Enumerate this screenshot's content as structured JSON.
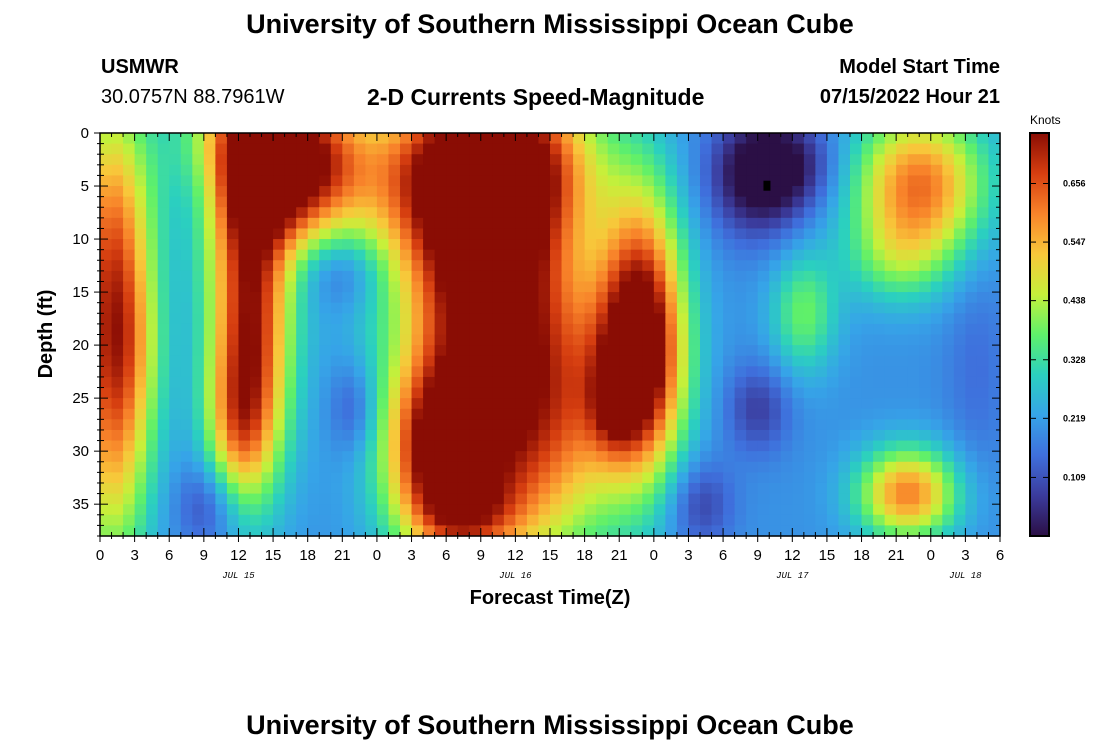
{
  "header": {
    "title": "University of Southern Mississippi Ocean Cube",
    "station": "USMWR",
    "coords": "30.0757N  88.7961W",
    "subtitle": "2-D Currents Speed-Magnitude",
    "model_start_label": "Model Start Time",
    "model_start_value": "07/15/2022 Hour 21",
    "footer_title": "University of Southern Mississippi Ocean Cube"
  },
  "colors": {
    "scale": [
      "#2b0f45",
      "#3b3b9c",
      "#3f6fdc",
      "#36a4e8",
      "#2bd0bf",
      "#5ff06a",
      "#c6f03a",
      "#f8c73a",
      "#f8832a",
      "#d63e10",
      "#8a0d04"
    ]
  },
  "chart_data": {
    "type": "heatmap",
    "xlabel": "Forecast Time(Z)",
    "ylabel": "Depth (ft)",
    "x_tick_labels": [
      "0",
      "3",
      "6",
      "9",
      "12",
      "15",
      "18",
      "21",
      "0",
      "3",
      "6",
      "9",
      "12",
      "15",
      "18",
      "21",
      "0",
      "3",
      "6",
      "9",
      "12",
      "15",
      "18",
      "21",
      "0",
      "3",
      "6"
    ],
    "x_range_hours": [
      0,
      78
    ],
    "day_labels": [
      {
        "label": "JUL 15",
        "hour": 12
      },
      {
        "label": "JUL 16",
        "hour": 36
      },
      {
        "label": "JUL 17",
        "hour": 60
      },
      {
        "label": "JUL 18",
        "hour": 75
      }
    ],
    "y_tick_labels": [
      "0",
      "5",
      "10",
      "15",
      "20",
      "25",
      "30",
      "35"
    ],
    "y_range_ft": [
      0,
      38
    ],
    "colorbar": {
      "unit": "Knots",
      "range": [
        0,
        0.75
      ],
      "ticks": [
        "0.109",
        "0.219",
        "0.328",
        "0.438",
        "0.547",
        "0.656"
      ]
    },
    "field": {
      "base": 0.2,
      "blobs": [
        [
          1,
          10,
          2.5,
          10,
          0.38
        ],
        [
          1,
          28,
          2.5,
          10,
          0.32
        ],
        [
          2.5,
          20,
          2,
          6,
          0.1
        ],
        [
          9,
          5,
          2,
          4,
          -0.1
        ],
        [
          9.5,
          35,
          2,
          3,
          -0.12
        ],
        [
          13,
          2,
          4,
          6,
          0.45
        ],
        [
          18,
          3,
          4,
          5,
          0.42
        ],
        [
          13,
          18,
          2.5,
          10,
          0.52
        ],
        [
          12,
          28,
          2,
          5,
          0.2
        ],
        [
          21,
          13,
          2.5,
          2.5,
          -0.1
        ],
        [
          22,
          26,
          1.5,
          3,
          -0.1
        ],
        [
          30,
          4,
          5,
          6,
          0.42
        ],
        [
          36,
          3,
          5,
          6,
          0.5
        ],
        [
          33,
          14,
          5,
          6,
          0.32
        ],
        [
          36,
          26,
          6,
          10,
          0.55
        ],
        [
          29,
          30,
          3,
          6,
          0.42
        ],
        [
          32,
          36,
          3,
          3,
          0.2
        ],
        [
          47,
          18,
          2.5,
          9,
          0.5
        ],
        [
          46,
          23,
          3,
          6,
          0.2
        ],
        [
          44.5,
          26,
          1.5,
          3,
          0.12
        ],
        [
          57,
          4,
          3,
          4,
          -0.22
        ],
        [
          60,
          3,
          3,
          3,
          -0.12
        ],
        [
          57,
          26,
          2,
          3,
          -0.12
        ],
        [
          52,
          35,
          2,
          3,
          -0.12
        ],
        [
          61,
          17,
          2,
          4,
          0.18
        ],
        [
          71,
          5,
          4,
          5,
          0.42
        ],
        [
          69,
          12,
          3,
          3,
          0.12
        ],
        [
          70,
          34,
          3,
          3,
          0.4
        ],
        [
          76,
          22,
          2,
          8,
          -0.05
        ]
      ]
    }
  }
}
